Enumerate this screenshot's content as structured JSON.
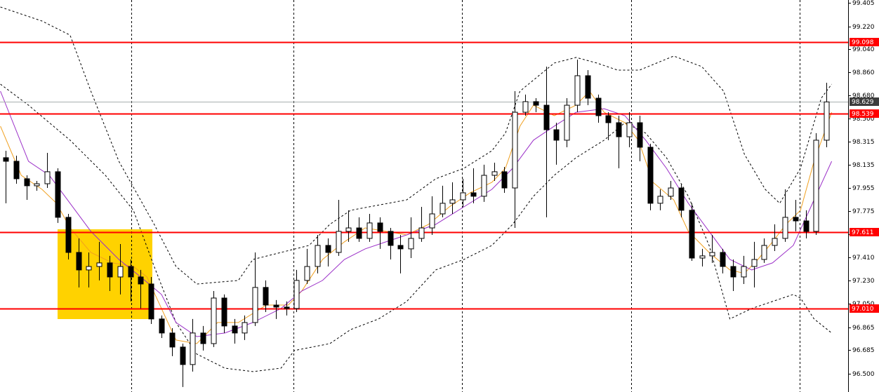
{
  "chart_data": {
    "type": "candlestick",
    "xlim": [
      -0.54,
      81.08
    ],
    "ylim": [
      96.357,
      99.427
    ],
    "yticks": [
      99.405,
      {
        "value": 99.22,
        "label": "99.220"
      },
      {
        "value": 99.04,
        "label": "99.040"
      },
      {
        "value": 98.86,
        "label": "98.860"
      },
      {
        "value": 98.68,
        "label": "98.680"
      },
      {
        "value": 98.5,
        "label": "98.500"
      },
      98.315,
      98.135,
      97.955,
      97.775,
      {
        "value": 97.59,
        "label": "97.590"
      },
      {
        "value": 97.41,
        "label": "97.410"
      },
      {
        "value": 97.23,
        "label": "97.230"
      },
      {
        "value": 97.05,
        "label": "97.050"
      },
      96.865,
      96.685,
      {
        "value": 96.5,
        "label": "96.500"
      }
    ],
    "up_color": "#ffffff",
    "down_color": "#000000",
    "candles": {
      "open": [
        98.192,
        98.164,
        98.027,
        97.972,
        97.988,
        98.082,
        97.725,
        97.45,
        97.313,
        97.34,
        97.368,
        97.258,
        97.34,
        97.258,
        97.203,
        96.929,
        96.819,
        96.709,
        96.572,
        96.819,
        96.736,
        97.093,
        96.874,
        96.819,
        96.901,
        97.176,
        97.038,
        97.022,
        97.011,
        97.231,
        97.34,
        97.505,
        97.45,
        97.615,
        97.642,
        97.56,
        97.681,
        97.615,
        97.505,
        97.478,
        97.56,
        97.642,
        97.752,
        97.835,
        97.862,
        97.917,
        97.89,
        98.054,
        98.082,
        97.955,
        98.548,
        98.631,
        98.603,
        98.411,
        98.329,
        98.603,
        98.834,
        98.658,
        98.521,
        98.466,
        98.356,
        98.466,
        98.274,
        97.835,
        97.89,
        97.955,
        97.78,
        97.406,
        97.423,
        97.45,
        97.34,
        97.258,
        97.34,
        97.395,
        97.505,
        97.56,
        97.725,
        97.697,
        97.615,
        98.329
      ],
      "high": [
        98.246,
        98.208,
        98.054,
        98.01,
        98.23,
        98.109,
        97.752,
        97.56,
        97.45,
        97.533,
        97.423,
        97.516,
        97.395,
        97.313,
        97.258,
        96.956,
        96.857,
        96.736,
        96.929,
        96.874,
        97.148,
        97.121,
        96.929,
        96.956,
        97.45,
        97.231,
        97.077,
        97.066,
        97.313,
        97.478,
        97.587,
        97.56,
        97.862,
        97.78,
        97.725,
        97.752,
        97.725,
        97.642,
        97.587,
        97.725,
        97.807,
        97.89,
        97.972,
        97.999,
        98.027,
        98.109,
        98.137,
        98.153,
        98.12,
        98.713,
        98.686,
        98.658,
        98.905,
        98.466,
        98.658,
        98.96,
        98.878,
        98.686,
        98.548,
        98.521,
        98.548,
        98.521,
        98.301,
        97.944,
        98.01,
        97.988,
        97.835,
        97.478,
        97.587,
        97.478,
        97.395,
        97.423,
        97.533,
        97.56,
        97.67,
        97.944,
        97.862,
        97.78,
        98.384,
        98.779
      ],
      "low": [
        97.835,
        97.988,
        97.862,
        97.933,
        97.955,
        97.681,
        97.395,
        97.176,
        97.176,
        97.231,
        97.148,
        97.121,
        97.066,
        97.011,
        96.89,
        96.78,
        96.638,
        96.396,
        96.517,
        96.682,
        96.709,
        96.819,
        96.736,
        96.764,
        96.874,
        96.983,
        96.929,
        96.956,
        96.983,
        97.203,
        97.286,
        97.34,
        97.423,
        97.533,
        97.533,
        97.533,
        97.478,
        97.395,
        97.286,
        97.406,
        97.533,
        97.587,
        97.725,
        97.752,
        97.807,
        97.835,
        97.846,
        98.01,
        97.917,
        97.642,
        98.521,
        98.548,
        97.725,
        98.137,
        98.274,
        98.548,
        98.603,
        98.466,
        98.329,
        98.109,
        98.274,
        98.164,
        97.78,
        97.78,
        97.862,
        97.725,
        97.384,
        97.34,
        97.368,
        97.286,
        97.148,
        97.203,
        97.176,
        97.368,
        97.461,
        97.533,
        97.615,
        97.56,
        97.587,
        98.274
      ],
      "close": [
        98.164,
        98.027,
        97.972,
        97.988,
        98.082,
        97.725,
        97.45,
        97.313,
        97.34,
        97.368,
        97.258,
        97.34,
        97.258,
        97.203,
        96.929,
        96.819,
        96.709,
        96.572,
        96.819,
        96.736,
        97.093,
        96.874,
        96.819,
        96.901,
        97.176,
        97.038,
        97.022,
        97.011,
        97.231,
        97.34,
        97.505,
        97.45,
        97.615,
        97.642,
        97.56,
        97.681,
        97.615,
        97.505,
        97.478,
        97.56,
        97.642,
        97.752,
        97.835,
        97.862,
        97.917,
        97.89,
        98.054,
        98.082,
        97.955,
        98.548,
        98.631,
        98.603,
        98.411,
        98.329,
        98.603,
        98.834,
        98.658,
        98.521,
        98.466,
        98.356,
        98.466,
        98.274,
        97.835,
        97.89,
        97.955,
        97.78,
        97.406,
        97.423,
        97.45,
        97.34,
        97.258,
        97.34,
        97.395,
        97.505,
        97.56,
        97.725,
        97.697,
        97.615,
        98.329,
        98.629
      ]
    },
    "lines": [
      {
        "color": "#000000",
        "dashed": true,
        "x": [
          -0.5,
          3.5,
          6.2,
          8.2,
          10.9,
          14.3,
          16.4,
          18.4,
          22.4,
          23.8,
          26.5,
          29.2,
          31.2,
          33.2,
          38.6,
          41.4,
          44.1,
          46.8,
          48.1,
          49.5,
          52.8,
          54.9,
          56.9,
          58.9,
          61.0,
          64.3,
          67.0,
          69.1,
          71.1,
          73.1,
          74.5,
          76.5,
          78.5,
          79.5
        ],
        "values": [
          99.372,
          99.262,
          99.152,
          98.713,
          98.164,
          97.67,
          97.34,
          97.203,
          97.231,
          97.395,
          97.45,
          97.505,
          97.67,
          97.78,
          97.862,
          98.027,
          98.109,
          98.246,
          98.384,
          98.713,
          98.933,
          98.977,
          98.933,
          98.878,
          98.878,
          98.988,
          98.905,
          98.713,
          98.219,
          97.944,
          97.835,
          98.109,
          98.658,
          98.768
        ]
      },
      {
        "color": "#000000",
        "dashed": true,
        "x": [
          -0.5,
          2.2,
          6.2,
          9.6,
          12.3,
          14.3,
          16.4,
          18.4,
          21.1,
          23.8,
          26.5,
          27.8,
          31.2,
          33.2,
          35.9,
          38.6,
          41.4,
          44.1,
          46.8,
          48.8,
          50.8,
          52.8,
          54.9,
          57.6,
          59.6,
          61.6,
          63.6,
          65.7,
          67.7,
          69.7,
          71.8,
          73.8,
          75.8,
          76.5,
          77.8,
          79.5
        ],
        "values": [
          98.768,
          98.603,
          98.329,
          98.054,
          97.78,
          97.34,
          96.901,
          96.654,
          96.544,
          96.517,
          96.544,
          96.682,
          96.736,
          96.846,
          96.929,
          97.066,
          97.313,
          97.395,
          97.505,
          97.67,
          97.89,
          98.054,
          98.192,
          98.329,
          98.466,
          98.384,
          98.192,
          97.89,
          97.505,
          96.929,
          97.011,
          97.066,
          97.121,
          97.093,
          96.929,
          96.819
        ]
      },
      {
        "color": "#f0a020",
        "dashed": false,
        "x": [
          -0.5,
          1.5,
          3.5,
          4.9,
          6.2,
          8.2,
          10.3,
          12.3,
          13.6,
          15.0,
          16.4,
          18.4,
          20.4,
          22.4,
          25.1,
          27.2,
          28.5,
          30.5,
          32.6,
          34.6,
          36.6,
          38.6,
          40.7,
          42.7,
          44.7,
          46.8,
          48.1,
          49.5,
          50.8,
          52.8,
          54.9,
          56.2,
          57.6,
          59.6,
          60.9,
          62.3,
          64.3,
          65.7,
          67.7,
          69.7,
          71.1,
          72.4,
          73.8,
          75.1,
          76.5,
          77.8,
          79.5
        ],
        "values": [
          98.439,
          98.054,
          97.944,
          97.835,
          97.642,
          97.45,
          97.368,
          97.34,
          97.258,
          97.011,
          96.764,
          96.736,
          96.901,
          96.901,
          97.038,
          97.038,
          97.148,
          97.395,
          97.533,
          97.642,
          97.615,
          97.587,
          97.67,
          97.807,
          97.917,
          97.999,
          98.109,
          98.439,
          98.603,
          98.521,
          98.603,
          98.713,
          98.548,
          98.466,
          98.329,
          97.999,
          97.862,
          97.615,
          97.45,
          97.313,
          97.286,
          97.395,
          97.533,
          97.67,
          97.78,
          98.164,
          98.548
        ]
      },
      {
        "color": "#9b30c8",
        "dashed": false,
        "x": [
          -0.5,
          2.2,
          4.2,
          6.2,
          8.2,
          10.9,
          13.0,
          15.0,
          16.4,
          18.4,
          21.1,
          23.8,
          26.5,
          28.5,
          30.5,
          32.6,
          34.6,
          36.6,
          38.6,
          41.4,
          44.1,
          46.8,
          48.8,
          50.8,
          52.8,
          54.9,
          57.6,
          59.6,
          61.6,
          63.6,
          65.7,
          67.7,
          69.7,
          71.8,
          73.8,
          75.8,
          77.8,
          79.5
        ],
        "values": [
          98.713,
          98.164,
          98.054,
          97.835,
          97.615,
          97.395,
          97.258,
          97.121,
          96.901,
          96.791,
          96.819,
          96.901,
          97.011,
          97.148,
          97.231,
          97.395,
          97.478,
          97.533,
          97.587,
          97.67,
          97.807,
          97.944,
          98.109,
          98.329,
          98.439,
          98.548,
          98.576,
          98.521,
          98.329,
          98.109,
          97.835,
          97.615,
          97.395,
          97.313,
          97.368,
          97.505,
          97.862,
          98.164
        ]
      }
    ],
    "levels": [
      99.098,
      98.539,
      97.611,
      {
        "value": 97.01,
        "label": "97.010"
      }
    ],
    "level_color": "#ff0000",
    "current_price": 98.629
  }
}
